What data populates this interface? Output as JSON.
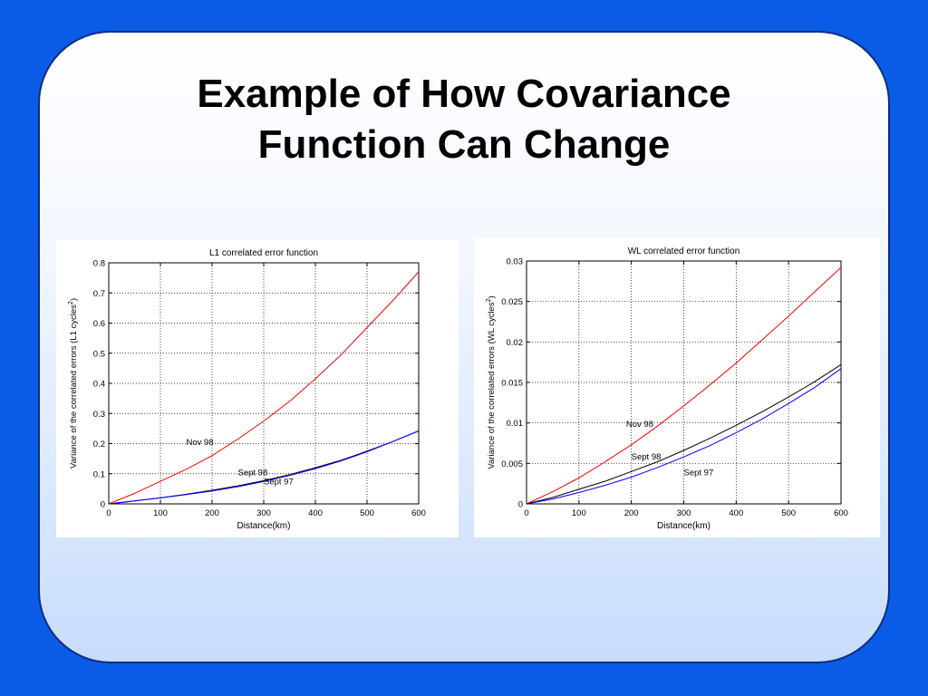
{
  "slide": {
    "title_line1": "Example of How Covariance",
    "title_line2": "Function Can Change",
    "background_color": "#0a5ce6"
  },
  "chart_data": [
    {
      "type": "line",
      "title": "L1 correlated error function",
      "xlabel": "Distance(km)",
      "ylabel": "Variance of the correlated errors (L1 cycles",
      "ylabel_sup": "2",
      "ylabel_end": ")",
      "xlim": [
        0,
        600
      ],
      "ylim": [
        0,
        0.8
      ],
      "xticks": [
        0,
        100,
        200,
        300,
        400,
        500,
        600
      ],
      "yticks": [
        0,
        0.1,
        0.2,
        0.3,
        0.4,
        0.5,
        0.6,
        0.7,
        0.8
      ],
      "ytick_labels": [
        "0",
        "0.1",
        "0.2",
        "0.3",
        "0.4",
        "0.5",
        "0.6",
        "0.7",
        "0.8"
      ],
      "grid": true,
      "x": [
        0,
        50,
        100,
        150,
        200,
        250,
        300,
        350,
        400,
        450,
        500,
        550,
        600
      ],
      "series": [
        {
          "values": [
            0,
            0.035,
            0.075,
            0.115,
            0.16,
            0.215,
            0.275,
            0.34,
            0.415,
            0.495,
            0.585,
            0.675,
            0.77
          ],
          "color": "#ff0000"
        },
        {
          "values": [
            0,
            0.01,
            0.02,
            0.032,
            0.045,
            0.06,
            0.077,
            0.097,
            0.12,
            0.145,
            0.175,
            0.207,
            0.242
          ],
          "color": "#000000"
        },
        {
          "values": [
            0,
            0.01,
            0.02,
            0.031,
            0.043,
            0.057,
            0.074,
            0.094,
            0.117,
            0.143,
            0.173,
            0.207,
            0.242
          ],
          "color": "#0000ff"
        }
      ],
      "annotations": [
        {
          "text": "Nov 98",
          "x": 150,
          "y": 0.195
        },
        {
          "text": "Sept 98",
          "x": 250,
          "y": 0.095
        },
        {
          "text": "Sept 97",
          "x": 300,
          "y": 0.065
        }
      ]
    },
    {
      "type": "line",
      "title": "WL correlated error function",
      "xlabel": "Distance(km)",
      "ylabel": "Variance of the correlated errors (WL cycles",
      "ylabel_sup": "2",
      "ylabel_end": ")",
      "xlim": [
        0,
        600
      ],
      "ylim": [
        0,
        0.03
      ],
      "xticks": [
        0,
        100,
        200,
        300,
        400,
        500,
        600
      ],
      "yticks": [
        0,
        0.005,
        0.01,
        0.015,
        0.02,
        0.025,
        0.03
      ],
      "ytick_labels": [
        "0",
        "0.005",
        "0.01",
        "0.015",
        "0.02",
        "0.025",
        "0.03"
      ],
      "grid": true,
      "x": [
        0,
        50,
        100,
        150,
        200,
        250,
        300,
        350,
        400,
        450,
        500,
        550,
        600
      ],
      "series": [
        {
          "values": [
            0,
            0.0015,
            0.0032,
            0.0052,
            0.0073,
            0.0096,
            0.0121,
            0.0147,
            0.0174,
            0.0203,
            0.0232,
            0.0262,
            0.0292
          ],
          "color": "#ff0000"
        },
        {
          "values": [
            0,
            0.0008,
            0.0018,
            0.0028,
            0.004,
            0.0052,
            0.0066,
            0.0081,
            0.0097,
            0.0114,
            0.0132,
            0.0151,
            0.0172
          ],
          "color": "#000000"
        },
        {
          "values": [
            0,
            0.0006,
            0.0014,
            0.0023,
            0.0033,
            0.0045,
            0.0058,
            0.0072,
            0.0088,
            0.0105,
            0.0124,
            0.0144,
            0.0167
          ],
          "color": "#0000ff"
        }
      ],
      "annotations": [
        {
          "text": "Nov 98",
          "x": 190,
          "y": 0.0095
        },
        {
          "text": "Sept 98",
          "x": 200,
          "y": 0.0055
        },
        {
          "text": "Sept 97",
          "x": 300,
          "y": 0.0035
        }
      ]
    }
  ]
}
